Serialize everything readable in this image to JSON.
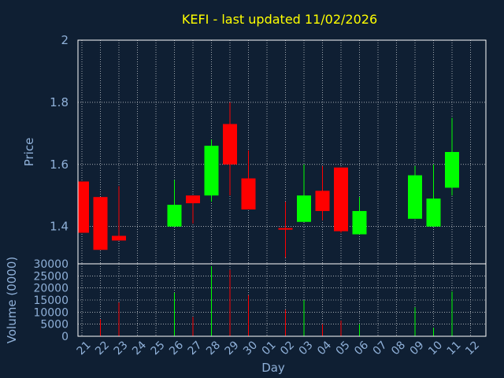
{
  "chart_data": {
    "type": "candlestick",
    "title": "KEFI - last updated 11/02/2026",
    "xlabel": "Day",
    "ylabel_price": "Price",
    "ylabel_volume": "Volume (0000)",
    "x_ticks": [
      "21",
      "22",
      "23",
      "24",
      "25",
      "26",
      "27",
      "28",
      "29",
      "30",
      "01",
      "02",
      "03",
      "04",
      "05",
      "06",
      "07",
      "08",
      "09",
      "10",
      "11",
      "12"
    ],
    "price_ticks": [
      "1.4",
      "1.6",
      "1.8",
      "2"
    ],
    "volume_ticks": [
      "0",
      "5000",
      "10000",
      "15000",
      "20000",
      "25000",
      "30000"
    ],
    "price_ylim": [
      1.28,
      2.0
    ],
    "volume_ylim": [
      0,
      30000
    ],
    "grid": true,
    "colors": {
      "up": "#00ff00",
      "down": "#ff0000",
      "title": "#ffff00",
      "label": "#8fb0d8",
      "frame": "#ffffff",
      "background": "#0f1f33"
    },
    "candles": [
      {
        "day": "21",
        "open": 1.545,
        "close": 1.38,
        "high": 1.545,
        "low": 1.38,
        "volume": 0
      },
      {
        "day": "22",
        "open": 1.495,
        "close": 1.325,
        "high": 1.495,
        "low": 1.325,
        "volume": 7000
      },
      {
        "day": "23",
        "open": 1.37,
        "close": 1.355,
        "high": 1.53,
        "low": 1.355,
        "volume": 14000
      },
      {
        "day": "26",
        "open": 1.4,
        "close": 1.47,
        "high": 1.55,
        "low": 1.4,
        "volume": 18000
      },
      {
        "day": "27",
        "open": 1.5,
        "close": 1.475,
        "high": 1.5,
        "low": 1.41,
        "volume": 8000
      },
      {
        "day": "28",
        "open": 1.5,
        "close": 1.66,
        "high": 1.68,
        "low": 1.48,
        "volume": 29000
      },
      {
        "day": "29",
        "open": 1.73,
        "close": 1.6,
        "high": 1.8,
        "low": 1.5,
        "volume": 27500
      },
      {
        "day": "30",
        "open": 1.555,
        "close": 1.455,
        "high": 1.645,
        "low": 1.455,
        "volume": 17000
      },
      {
        "day": "02",
        "open": 1.395,
        "close": 1.39,
        "high": 1.48,
        "low": 1.3,
        "volume": 11000
      },
      {
        "day": "03",
        "open": 1.415,
        "close": 1.5,
        "high": 1.6,
        "low": 1.415,
        "volume": 15000
      },
      {
        "day": "04",
        "open": 1.515,
        "close": 1.45,
        "high": 1.595,
        "low": 1.42,
        "volume": 5000
      },
      {
        "day": "05",
        "open": 1.59,
        "close": 1.385,
        "high": 1.59,
        "low": 1.38,
        "volume": 6500
      },
      {
        "day": "06",
        "open": 1.375,
        "close": 1.45,
        "high": 1.495,
        "low": 1.375,
        "volume": 5000
      },
      {
        "day": "09",
        "open": 1.425,
        "close": 1.565,
        "high": 1.595,
        "low": 1.425,
        "volume": 12000
      },
      {
        "day": "10",
        "open": 1.4,
        "close": 1.49,
        "high": 1.6,
        "low": 1.4,
        "volume": 3500
      },
      {
        "day": "11",
        "open": 1.525,
        "close": 1.64,
        "high": 1.75,
        "low": 1.5,
        "volume": 18500
      }
    ]
  }
}
